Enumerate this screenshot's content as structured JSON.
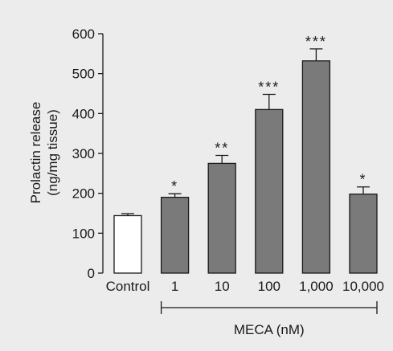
{
  "chart_data": {
    "type": "bar",
    "ylabel_lines": [
      "Prolactin release",
      "(ng/mg tissue)"
    ],
    "group_label": "MECA (nM)",
    "categories": [
      "Control",
      "1",
      "10",
      "100",
      "1,000",
      "10,000"
    ],
    "values": [
      144,
      190,
      275,
      410,
      532,
      198
    ],
    "errors": [
      5,
      9,
      20,
      38,
      30,
      18
    ],
    "significance": [
      "",
      "*",
      "**",
      "***",
      "***",
      "*"
    ],
    "bar_colors": [
      "#ffffff",
      "#7a7a7a",
      "#7a7a7a",
      "#7a7a7a",
      "#7a7a7a",
      "#7a7a7a"
    ],
    "ylim": [
      0,
      600
    ],
    "yticks": [
      0,
      100,
      200,
      300,
      400,
      500,
      600
    ],
    "grid": false,
    "legend": "none",
    "group_span": [
      "1",
      "10,000"
    ]
  }
}
